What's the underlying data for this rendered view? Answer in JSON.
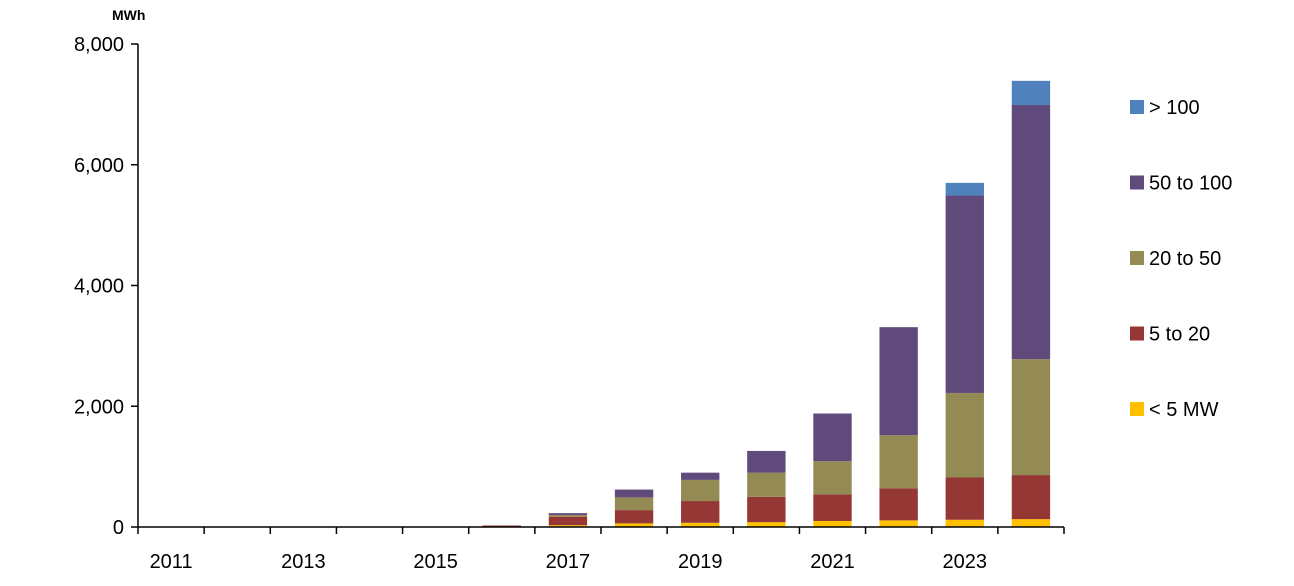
{
  "chart_data": {
    "type": "bar",
    "stacked": true,
    "y_unit": "MWh",
    "ylim": [
      0,
      8000
    ],
    "y_ticks": [
      0,
      2000,
      4000,
      6000,
      8000
    ],
    "y_tick_labels": [
      "0",
      "2,000",
      "4,000",
      "6,000",
      "8,000"
    ],
    "categories": [
      "2011",
      "2012",
      "2013",
      "2014",
      "2015",
      "2016",
      "2017",
      "2018",
      "2019",
      "2020",
      "2021",
      "2022",
      "2023",
      "2024"
    ],
    "x_tick_labels": [
      "2011",
      "2013",
      "2015",
      "2017",
      "2019",
      "2021",
      "2023"
    ],
    "grid": false,
    "legend_position": "right",
    "series": [
      {
        "name": "< 5 MW",
        "color": "#FFC000",
        "values": [
          0,
          0,
          0,
          0,
          0,
          5,
          30,
          60,
          70,
          80,
          100,
          110,
          120,
          130
        ]
      },
      {
        "name": "5 to 20",
        "color": "#953735",
        "values": [
          0,
          0,
          0,
          0,
          0,
          20,
          140,
          220,
          360,
          420,
          440,
          530,
          700,
          730
        ]
      },
      {
        "name": "20 to 50",
        "color": "#948A54",
        "values": [
          0,
          0,
          0,
          0,
          0,
          0,
          30,
          210,
          350,
          400,
          550,
          880,
          1400,
          1920
        ]
      },
      {
        "name": "50 to 100",
        "color": "#604A7B",
        "values": [
          0,
          0,
          0,
          0,
          0,
          0,
          30,
          130,
          120,
          360,
          790,
          1790,
          3270,
          4210
        ]
      },
      {
        "name": "> 100",
        "color": "#4F81BD",
        "values": [
          0,
          0,
          0,
          0,
          0,
          0,
          0,
          0,
          0,
          0,
          0,
          0,
          210,
          400
        ]
      }
    ],
    "legend_order": [
      "> 100",
      "50 to 100",
      "20 to 50",
      "5 to 20",
      "< 5 MW"
    ]
  }
}
